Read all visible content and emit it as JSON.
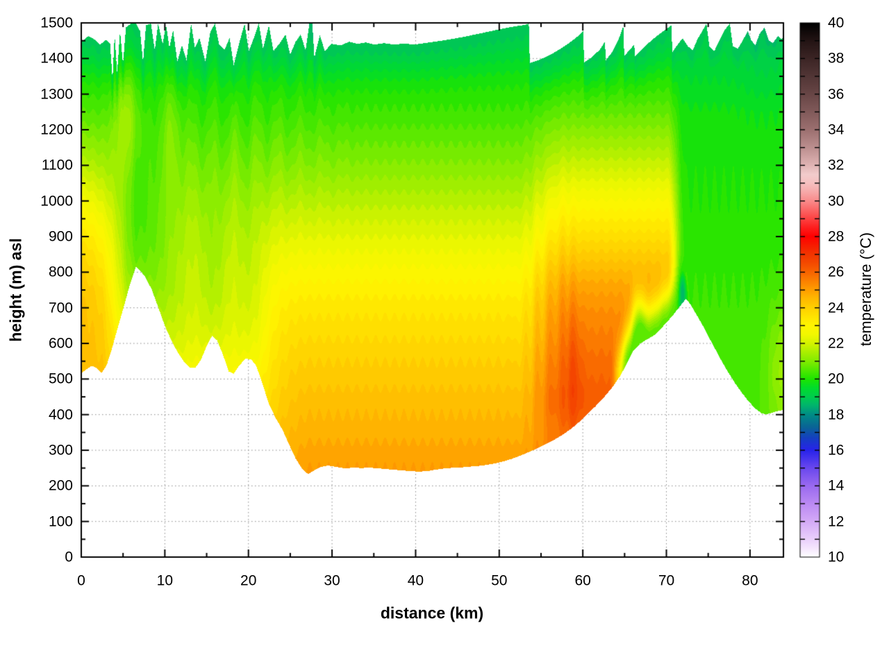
{
  "chart_data": {
    "type": "filled_contour",
    "xlabel": "distance (km)",
    "ylabel": "height (m) asl",
    "colorbar_label": "temperature (°C)",
    "x_range": [
      0,
      84
    ],
    "y_range": [
      0,
      1500
    ],
    "t_range": [
      10,
      40
    ],
    "x_ticks": [
      0,
      10,
      20,
      30,
      40,
      50,
      60,
      70,
      80
    ],
    "x_minor_step": 5,
    "y_ticks": [
      0,
      100,
      200,
      300,
      400,
      500,
      600,
      700,
      800,
      900,
      1000,
      1100,
      1200,
      1300,
      1400,
      1500
    ],
    "y_minor_step": 50,
    "cb_tick_step": 1,
    "cb_label_ticks": [
      10,
      12,
      14,
      16,
      18,
      20,
      22,
      24,
      26,
      28,
      30,
      32,
      34,
      36,
      38,
      40
    ],
    "grid": {
      "color": "#888888",
      "style": "dotted",
      "x_every_km": 10,
      "y_every_m": 100
    },
    "palette": [
      [
        10,
        "#ffffff"
      ],
      [
        10.5,
        "#f5e6fd"
      ],
      [
        11,
        "#ead0fb"
      ],
      [
        12,
        "#d4aaf7"
      ],
      [
        13,
        "#bb8af3"
      ],
      [
        14,
        "#9a6af0"
      ],
      [
        15,
        "#6a48ee"
      ],
      [
        16,
        "#2823eb"
      ],
      [
        16.7,
        "#1440c0"
      ],
      [
        17.3,
        "#0a6496"
      ],
      [
        18,
        "#008c86"
      ],
      [
        18.5,
        "#00b36e"
      ],
      [
        19,
        "#00cd4d"
      ],
      [
        19.5,
        "#00dc2d"
      ],
      [
        20,
        "#1ee400"
      ],
      [
        20.5,
        "#50e800"
      ],
      [
        21,
        "#82ec00"
      ],
      [
        21.5,
        "#aaef00"
      ],
      [
        22,
        "#d4f300"
      ],
      [
        22.5,
        "#f2f800"
      ],
      [
        23,
        "#fff500"
      ],
      [
        23.5,
        "#ffe400"
      ],
      [
        24,
        "#ffd000"
      ],
      [
        24.5,
        "#ffb900"
      ],
      [
        25,
        "#ff9e00"
      ],
      [
        25.5,
        "#fc8100"
      ],
      [
        26,
        "#f86400"
      ],
      [
        26.5,
        "#f44a00"
      ],
      [
        27,
        "#f23600"
      ],
      [
        27.5,
        "#f81c00"
      ],
      [
        28,
        "#ff0000"
      ],
      [
        28.5,
        "#fe1e1e"
      ],
      [
        29,
        "#fd4242"
      ],
      [
        29.5,
        "#fb6666"
      ],
      [
        30,
        "#f98b8b"
      ],
      [
        30.5,
        "#f7a8a8"
      ],
      [
        31,
        "#f6c0c0"
      ],
      [
        31.5,
        "#f2cccc"
      ],
      [
        32,
        "#e0b4b4"
      ],
      [
        33,
        "#bc8f8f"
      ],
      [
        34,
        "#9c7070"
      ],
      [
        35,
        "#815a5a"
      ],
      [
        36,
        "#684646"
      ],
      [
        37,
        "#523636"
      ],
      [
        38,
        "#3c2525"
      ],
      [
        39,
        "#231414"
      ],
      [
        40,
        "#000000"
      ]
    ],
    "terrain_profile_km_m": [
      [
        0,
        518
      ],
      [
        0.7,
        530
      ],
      [
        1.2,
        538
      ],
      [
        1.8,
        532
      ],
      [
        2.4,
        518
      ],
      [
        3.0,
        540
      ],
      [
        3.6,
        584
      ],
      [
        4.2,
        635
      ],
      [
        5.0,
        700
      ],
      [
        5.8,
        768
      ],
      [
        6.5,
        816
      ],
      [
        7.0,
        806
      ],
      [
        7.6,
        788
      ],
      [
        8.4,
        752
      ],
      [
        9.2,
        700
      ],
      [
        10.0,
        648
      ],
      [
        10.8,
        606
      ],
      [
        11.6,
        572
      ],
      [
        12.4,
        545
      ],
      [
        13.0,
        532
      ],
      [
        13.6,
        532
      ],
      [
        14.3,
        556
      ],
      [
        15.0,
        596
      ],
      [
        15.6,
        622
      ],
      [
        16.2,
        610
      ],
      [
        16.9,
        570
      ],
      [
        17.6,
        522
      ],
      [
        18.2,
        516
      ],
      [
        18.9,
        540
      ],
      [
        19.6,
        558
      ],
      [
        20.3,
        556
      ],
      [
        20.9,
        538
      ],
      [
        21.6,
        490
      ],
      [
        22.4,
        432
      ],
      [
        23.2,
        392
      ],
      [
        24.0,
        360
      ],
      [
        24.8,
        318
      ],
      [
        25.6,
        278
      ],
      [
        26.4,
        248
      ],
      [
        27.1,
        234
      ],
      [
        27.8,
        244
      ],
      [
        28.6,
        254
      ],
      [
        29.5,
        258
      ],
      [
        30.5,
        254
      ],
      [
        31.5,
        250
      ],
      [
        32.5,
        252
      ],
      [
        33.5,
        251
      ],
      [
        34.5,
        252
      ],
      [
        35.5,
        250
      ],
      [
        36.5,
        248
      ],
      [
        37.5,
        246
      ],
      [
        38.5,
        244
      ],
      [
        39.5,
        242
      ],
      [
        40.5,
        241
      ],
      [
        41.5,
        243
      ],
      [
        42.5,
        247
      ],
      [
        43.5,
        250
      ],
      [
        44.5,
        252
      ],
      [
        45.5,
        253
      ],
      [
        46.5,
        255
      ],
      [
        47.5,
        257
      ],
      [
        48.5,
        260
      ],
      [
        49.5,
        264
      ],
      [
        50.5,
        270
      ],
      [
        51.5,
        277
      ],
      [
        52.5,
        286
      ],
      [
        53.5,
        296
      ],
      [
        54.5,
        306
      ],
      [
        55.5,
        318
      ],
      [
        56.5,
        330
      ],
      [
        57.5,
        344
      ],
      [
        58.5,
        360
      ],
      [
        59.5,
        380
      ],
      [
        60.5,
        402
      ],
      [
        61.5,
        425
      ],
      [
        62.5,
        450
      ],
      [
        63.5,
        478
      ],
      [
        64.5,
        512
      ],
      [
        65.3,
        548
      ],
      [
        66.0,
        580
      ],
      [
        66.8,
        600
      ],
      [
        67.6,
        612
      ],
      [
        68.4,
        622
      ],
      [
        69.2,
        640
      ],
      [
        70.0,
        660
      ],
      [
        70.8,
        682
      ],
      [
        71.6,
        706
      ],
      [
        72.3,
        726
      ],
      [
        72.8,
        712
      ],
      [
        73.4,
        688
      ],
      [
        74.2,
        656
      ],
      [
        75.0,
        620
      ],
      [
        75.8,
        585
      ],
      [
        76.6,
        550
      ],
      [
        77.4,
        518
      ],
      [
        78.2,
        488
      ],
      [
        79.0,
        462
      ],
      [
        79.8,
        438
      ],
      [
        80.6,
        418
      ],
      [
        81.4,
        404
      ],
      [
        82.0,
        402
      ],
      [
        82.8,
        408
      ],
      [
        83.4,
        412
      ],
      [
        84,
        414
      ]
    ],
    "top_boundary_km_m": [
      [
        0,
        1448
      ],
      [
        0.8,
        1464
      ],
      [
        1.5,
        1455
      ],
      [
        2.2,
        1440
      ],
      [
        2.9,
        1453
      ],
      [
        3.4,
        1444
      ],
      [
        3.7,
        1342
      ],
      [
        3.95,
        1468
      ],
      [
        4.25,
        1360
      ],
      [
        4.6,
        1478
      ],
      [
        4.95,
        1385
      ],
      [
        5.3,
        1488
      ],
      [
        5.9,
        1499
      ],
      [
        6.5,
        1499
      ],
      [
        7.0,
        1478
      ],
      [
        7.35,
        1390
      ],
      [
        7.7,
        1494
      ],
      [
        8.3,
        1499
      ],
      [
        8.75,
        1424
      ],
      [
        9.15,
        1499
      ],
      [
        9.7,
        1442
      ],
      [
        10.1,
        1496
      ],
      [
        10.5,
        1432
      ],
      [
        10.95,
        1480
      ],
      [
        11.45,
        1392
      ],
      [
        12.0,
        1438
      ],
      [
        12.55,
        1396
      ],
      [
        13.1,
        1499
      ],
      [
        13.55,
        1432
      ],
      [
        14.1,
        1458
      ],
      [
        14.8,
        1392
      ],
      [
        15.4,
        1476
      ],
      [
        15.95,
        1499
      ],
      [
        16.45,
        1440
      ],
      [
        17.1,
        1426
      ],
      [
        17.7,
        1458
      ],
      [
        18.2,
        1382
      ],
      [
        18.9,
        1448
      ],
      [
        19.5,
        1499
      ],
      [
        20.0,
        1422
      ],
      [
        20.6,
        1458
      ],
      [
        21.2,
        1499
      ],
      [
        21.7,
        1428
      ],
      [
        22.4,
        1494
      ],
      [
        22.95,
        1422
      ],
      [
        23.7,
        1444
      ],
      [
        24.4,
        1468
      ],
      [
        24.95,
        1412
      ],
      [
        25.6,
        1448
      ],
      [
        26.2,
        1468
      ],
      [
        26.8,
        1424
      ],
      [
        27.25,
        1499
      ],
      [
        27.6,
        1499
      ],
      [
        27.85,
        1404
      ],
      [
        28.5,
        1466
      ],
      [
        29.1,
        1422
      ],
      [
        29.9,
        1442
      ],
      [
        31,
        1438
      ],
      [
        32,
        1448
      ],
      [
        33,
        1442
      ],
      [
        34,
        1446
      ],
      [
        35,
        1440
      ],
      [
        36.2,
        1444
      ],
      [
        37.4,
        1440
      ],
      [
        38.6,
        1443
      ],
      [
        39.8,
        1440
      ],
      [
        41,
        1444
      ],
      [
        42.2,
        1448
      ],
      [
        43.4,
        1452
      ],
      [
        44.6,
        1457
      ],
      [
        45.8,
        1462
      ],
      [
        47,
        1468
      ],
      [
        48.2,
        1474
      ],
      [
        49.4,
        1480
      ],
      [
        50.6,
        1486
      ],
      [
        51.8,
        1491
      ],
      [
        53.0,
        1495
      ],
      [
        53.5,
        1499
      ],
      [
        53.62,
        1388
      ],
      [
        54.4,
        1394
      ],
      [
        55.4,
        1404
      ],
      [
        56.4,
        1416
      ],
      [
        57.4,
        1430
      ],
      [
        58.4,
        1446
      ],
      [
        59.4,
        1464
      ],
      [
        60.0,
        1478
      ],
      [
        60.12,
        1390
      ],
      [
        61.0,
        1404
      ],
      [
        62.0,
        1426
      ],
      [
        62.6,
        1448
      ],
      [
        62.72,
        1396
      ],
      [
        63.5,
        1420
      ],
      [
        64.2,
        1452
      ],
      [
        64.8,
        1492
      ],
      [
        64.92,
        1408
      ],
      [
        65.6,
        1426
      ],
      [
        66.1,
        1440
      ],
      [
        66.22,
        1408
      ],
      [
        67.0,
        1426
      ],
      [
        67.9,
        1446
      ],
      [
        68.7,
        1462
      ],
      [
        69.5,
        1476
      ],
      [
        70.2,
        1488
      ],
      [
        70.55,
        1494
      ],
      [
        70.67,
        1418
      ],
      [
        71.3,
        1440
      ],
      [
        71.9,
        1458
      ],
      [
        72.5,
        1436
      ],
      [
        73.1,
        1424
      ],
      [
        73.7,
        1456
      ],
      [
        74.3,
        1480
      ],
      [
        74.75,
        1499
      ],
      [
        75.1,
        1434
      ],
      [
        75.7,
        1422
      ],
      [
        76.3,
        1452
      ],
      [
        76.9,
        1480
      ],
      [
        77.55,
        1499
      ],
      [
        77.9,
        1436
      ],
      [
        78.5,
        1428
      ],
      [
        79.1,
        1452
      ],
      [
        79.7,
        1478
      ],
      [
        80.1,
        1452
      ],
      [
        80.6,
        1438
      ],
      [
        81.1,
        1470
      ],
      [
        81.7,
        1488
      ],
      [
        82.2,
        1452
      ],
      [
        82.7,
        1444
      ],
      [
        83.3,
        1464
      ],
      [
        83.7,
        1456
      ],
      [
        84,
        1460
      ]
    ],
    "base_temp_profile_m_C": [
      [
        0,
        25.4
      ],
      [
        150,
        25.15
      ],
      [
        250,
        25.0
      ],
      [
        300,
        24.85
      ],
      [
        350,
        24.65
      ],
      [
        400,
        24.5
      ],
      [
        450,
        24.35
      ],
      [
        500,
        24.15
      ],
      [
        550,
        24.0
      ],
      [
        600,
        23.8
      ],
      [
        650,
        23.6
      ],
      [
        700,
        23.4
      ],
      [
        750,
        23.15
      ],
      [
        800,
        22.85
      ],
      [
        850,
        22.55
      ],
      [
        900,
        22.25
      ],
      [
        950,
        21.95
      ],
      [
        1000,
        21.65
      ],
      [
        1050,
        21.35
      ],
      [
        1100,
        21.05
      ],
      [
        1150,
        20.8
      ],
      [
        1200,
        20.55
      ],
      [
        1250,
        20.3
      ],
      [
        1300,
        20.1
      ],
      [
        1350,
        19.85
      ],
      [
        1400,
        19.5
      ],
      [
        1430,
        19.25
      ],
      [
        1460,
        19.0
      ],
      [
        1500,
        18.82
      ],
      [
        1700,
        18.35
      ]
    ],
    "features": {
      "quantize_step_C": 0.25,
      "cap_warp_depth_m": 170,
      "mountain_lift_sigma_m": 360,
      "mountain_lift_profile": [
        [
          2.5,
          0
        ],
        [
          4,
          140
        ],
        [
          5.5,
          280
        ],
        [
          6.5,
          330
        ],
        [
          10,
          330
        ],
        [
          12,
          320
        ],
        [
          13.5,
          300
        ],
        [
          15,
          305
        ],
        [
          16.5,
          300
        ],
        [
          18,
          290
        ],
        [
          19.5,
          285
        ],
        [
          21,
          260
        ],
        [
          22,
          215
        ],
        [
          23,
          150
        ],
        [
          24,
          90
        ],
        [
          25.5,
          35
        ],
        [
          27,
          0
        ]
      ],
      "left_warm_column": {
        "amp": 1.15,
        "x0": 0,
        "xs": 3.4,
        "h0": 860,
        "hs": 310
      },
      "plumes": [
        {
          "amp": 1.15,
          "x0": 5.4,
          "xs": 1.7,
          "h0": 1245,
          "hs": 165
        },
        {
          "amp": 0.55,
          "x0": 10.6,
          "xs": 1.3,
          "h0": 1225,
          "hs": 150
        }
      ],
      "wiggle": {
        "amp": 0.22,
        "k": 2.42,
        "phase": 1.2,
        "xc": 19,
        "xw": 16,
        "h0": 1170,
        "hs": 230
      },
      "warm_pool": {
        "amp": 1.85,
        "rise_c": 55.0,
        "rise_w": 3.0,
        "fall_c": 71.0,
        "fall_w": 1.0,
        "taper": [
          [
            250,
            0.4
          ],
          [
            350,
            0.62
          ],
          [
            420,
            0.9
          ],
          [
            470,
            1
          ],
          [
            680,
            1
          ],
          [
            780,
            0.95
          ],
          [
            900,
            0.75
          ],
          [
            1000,
            0.62
          ],
          [
            1100,
            0.46
          ],
          [
            1200,
            0.28
          ],
          [
            1300,
            0.13
          ],
          [
            1400,
            0.03
          ],
          [
            1500,
            0
          ]
        ]
      },
      "hot_core": {
        "amp": 0.5,
        "x0": 59.0,
        "xs": 0.9,
        "h0": 520,
        "hs": 180
      },
      "hot_streak": {
        "amp": 0.28,
        "x0": 58.5,
        "xs": 0.35,
        "h0": 560,
        "hs": 260
      },
      "stripes_local": {
        "amp": 0.28,
        "k": 4.19,
        "x0": 52.6,
        "env_x": 55.8,
        "env_s": 3.2,
        "h0": 680,
        "hs": 360
      },
      "stripes_global": {
        "amp": 0.05,
        "k": 5.58
      },
      "slope_skin_right": {
        "target": 20.6,
        "rise_c": 64.3,
        "rise_w": 1.2,
        "fall_c": 73.2,
        "fall_w": 0.7,
        "hs": 95,
        "pocket_amp": 0.35,
        "pocket_x": 66.6,
        "pocket_xs": 0.8,
        "pocket_h": 680,
        "pocket_hs": 80
      },
      "summit_teal_notch": {
        "target": 18.55,
        "x0": 71.9,
        "xs": 0.55,
        "h0": 742,
        "hs": 80,
        "wmax": 0.95
      },
      "cool_east": {
        "rise_c": 71.3,
        "rise_w": 1.1,
        "target_profile": [
          [
            300,
            20.5
          ],
          [
            500,
            20.4
          ],
          [
            700,
            20.3
          ],
          [
            900,
            20.1
          ],
          [
            1100,
            19.95
          ],
          [
            1250,
            19.8
          ],
          [
            1400,
            19.3
          ],
          [
            1500,
            18.9
          ]
        ]
      },
      "pocket_southeast": {
        "amp": 0.85,
        "x0": 83.6,
        "xs": 1.6,
        "h0": 530,
        "hs": 190
      },
      "dark_top_column": {
        "amp": 0.35,
        "x0": 27.45,
        "xs": 0.22,
        "hmin": 1398
      },
      "cap_cool_dome": {
        "amp": 0.2,
        "x0": 81.5,
        "xs": 2.6,
        "h0": 1390,
        "hs": 160
      }
    }
  }
}
